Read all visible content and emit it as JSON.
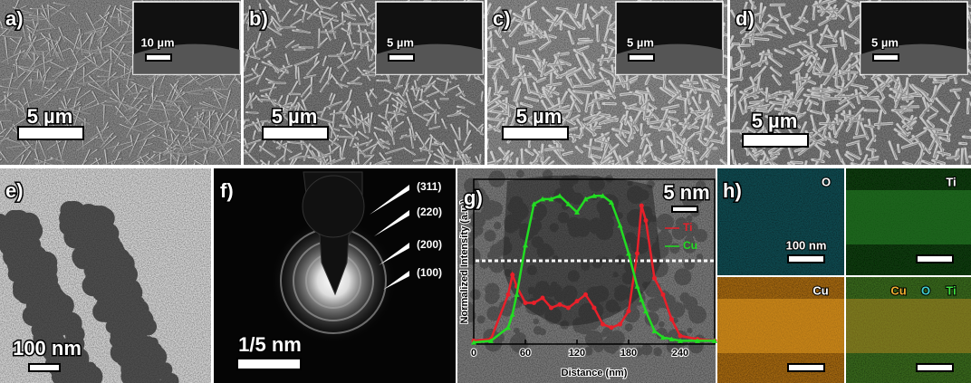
{
  "sem_panels": [
    {
      "label": "a)",
      "scale_bar": "5 µm",
      "inset_scale_bar": "10 µm"
    },
    {
      "label": "b)",
      "scale_bar": "5 µm",
      "inset_scale_bar": "5 µm"
    },
    {
      "label": "c)",
      "scale_bar": "5 µm",
      "inset_scale_bar": "5 µm"
    },
    {
      "label": "d)",
      "scale_bar": "5 µm",
      "inset_scale_bar": "5 µm"
    }
  ],
  "tem_panel": {
    "label": "e)",
    "scale_bar": "100 nm"
  },
  "saed_panel": {
    "label": "f)",
    "scale_bar": "1/5 nm",
    "rings": [
      "(311)",
      "(220)",
      "(200)",
      "(100)"
    ]
  },
  "line_scan_panel": {
    "label": "g)",
    "scale_bar": "5 nm"
  },
  "mapping_panel": {
    "label": "h)",
    "scale_bar": "100 nm",
    "maps": [
      "O",
      "Ti",
      "Cu"
    ],
    "overlay": [
      "Cu",
      "O",
      "Ti"
    ]
  },
  "chart_data": {
    "type": "line",
    "x_label": "Distance (nm)",
    "y_label": "Normalized Intensity (a.u.)",
    "x": [
      0,
      20,
      40,
      45,
      50,
      60,
      70,
      80,
      90,
      100,
      110,
      120,
      130,
      140,
      150,
      160,
      170,
      180,
      190,
      195,
      200,
      210,
      220,
      230,
      240,
      260,
      280
    ],
    "series": [
      {
        "name": "Ti",
        "color": "#e8202a",
        "values": [
          0.02,
          0.03,
          0.3,
          0.42,
          0.35,
          0.25,
          0.25,
          0.28,
          0.22,
          0.24,
          0.22,
          0.26,
          0.3,
          0.22,
          0.12,
          0.1,
          0.12,
          0.2,
          0.55,
          0.84,
          0.75,
          0.4,
          0.3,
          0.15,
          0.05,
          0.03,
          0.02
        ]
      },
      {
        "name": "Cu",
        "color": "#22dd22",
        "values": [
          0.01,
          0.02,
          0.1,
          0.18,
          0.3,
          0.6,
          0.85,
          0.88,
          0.88,
          0.9,
          0.85,
          0.8,
          0.88,
          0.9,
          0.9,
          0.86,
          0.72,
          0.55,
          0.35,
          0.27,
          0.2,
          0.08,
          0.04,
          0.03,
          0.02,
          0.02,
          0.02
        ]
      }
    ],
    "xlim": [
      0,
      280
    ],
    "ylim": [
      0,
      1
    ],
    "xticks": [
      0,
      60,
      120,
      180,
      240
    ]
  }
}
